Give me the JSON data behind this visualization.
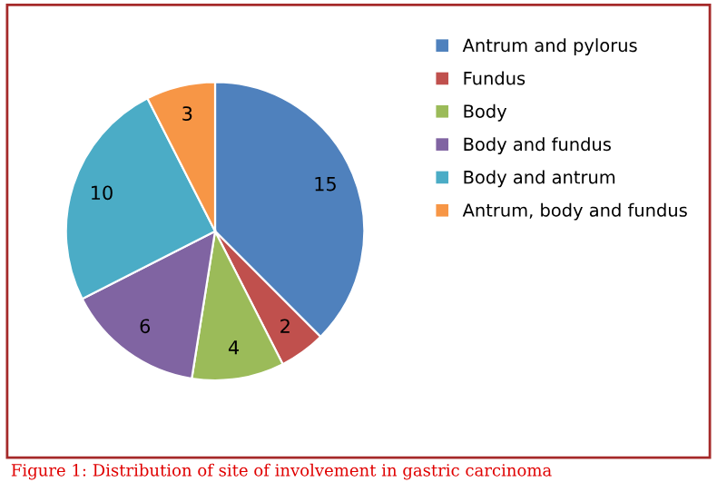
{
  "chart_data": {
    "type": "pie",
    "categories": [
      "Antrum and pylorus",
      "Fundus",
      "Body",
      "Body and fundus",
      "Body and antrum",
      "Antrum, body and fundus"
    ],
    "values": [
      15,
      2,
      4,
      6,
      10,
      3
    ],
    "colors": [
      "#4f81bd",
      "#c0504d",
      "#9bbb59",
      "#8064a2",
      "#4bacc6",
      "#f79646"
    ],
    "data_labels": true,
    "legend": "right",
    "annotations": [
      "Figure 1: Distribution of site of involvement in gastric carcinoma"
    ]
  }
}
